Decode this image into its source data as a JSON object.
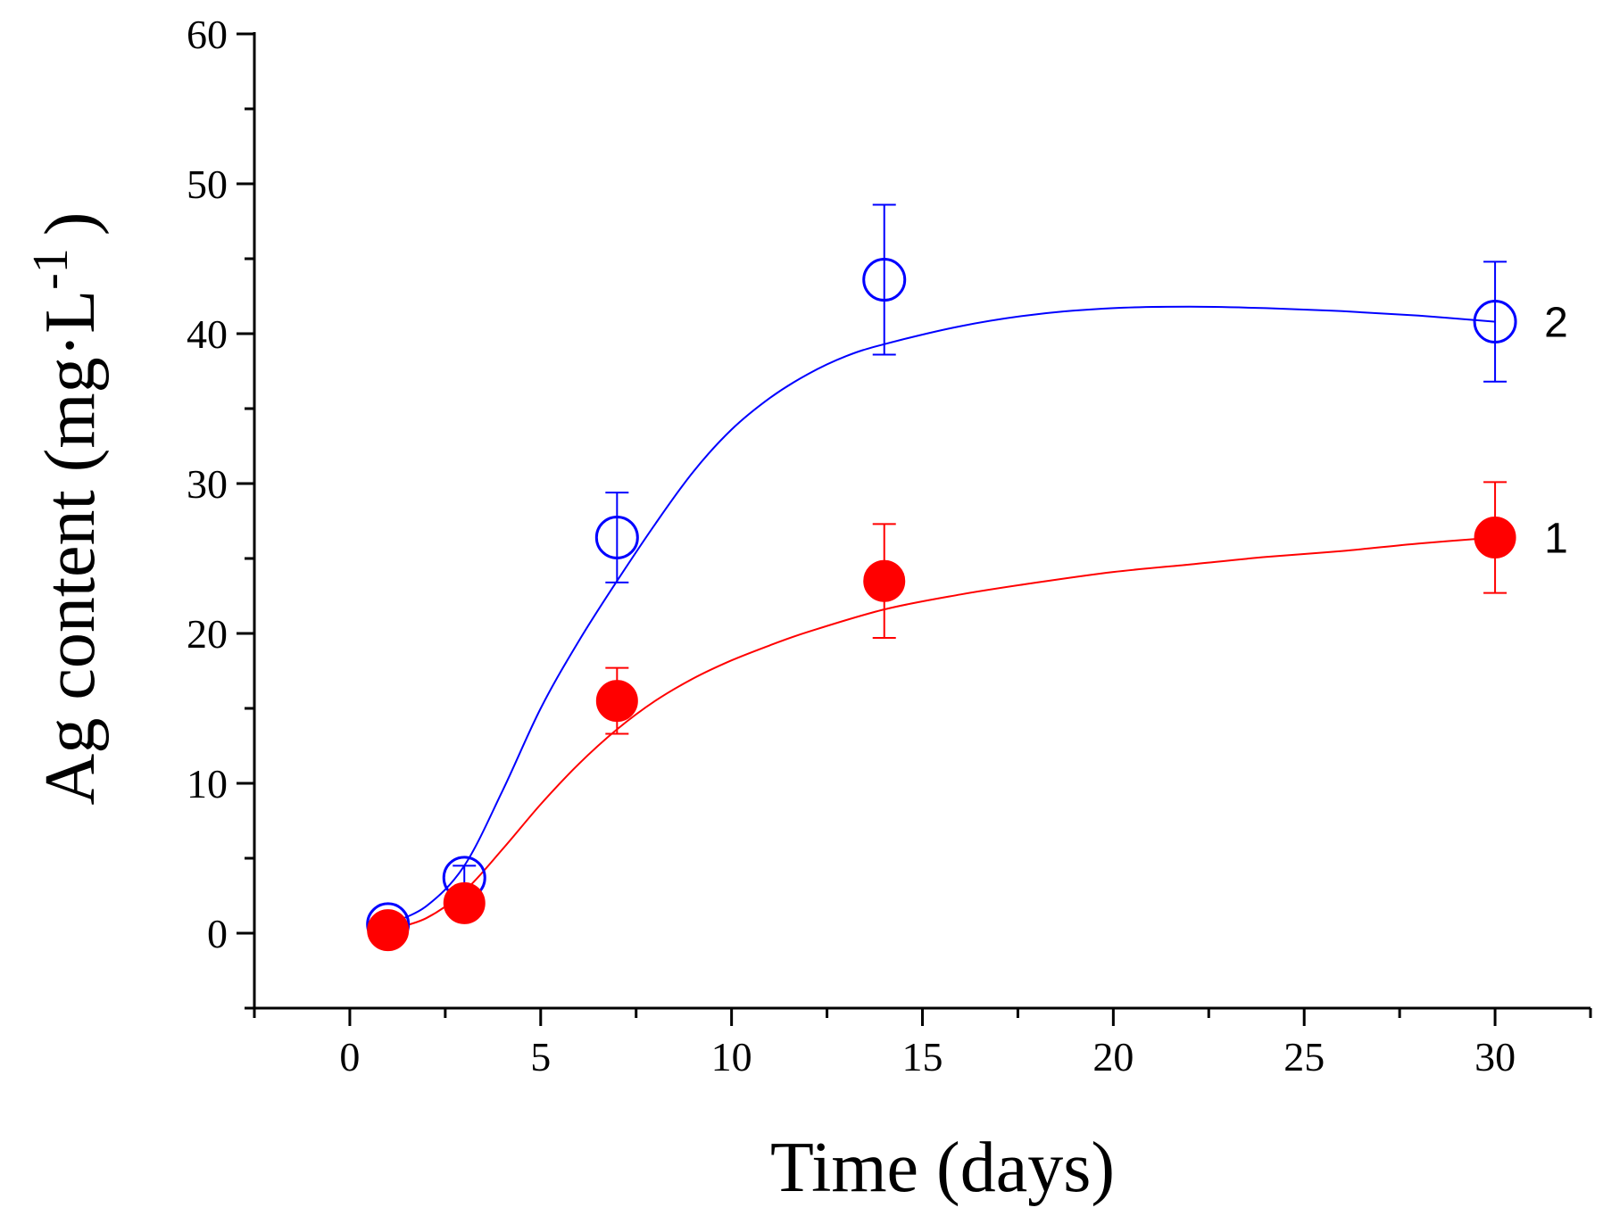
{
  "chart_data": {
    "type": "scatter",
    "xlabel": "Time (days)",
    "ylabel": "Ag content  (mg·L",
    "ylabel_superscript": "-1",
    "ylabel_close": ")",
    "xlim": [
      -2.5,
      32.5
    ],
    "ylim": [
      -5,
      60
    ],
    "xticks": [
      0,
      5,
      10,
      15,
      20,
      25,
      30
    ],
    "yticks": [
      0,
      10,
      20,
      30,
      40,
      50,
      60
    ],
    "grid": false,
    "series": [
      {
        "name": "1",
        "color": "#ff0000",
        "marker": "filled-circle",
        "x": [
          1,
          3,
          7,
          14,
          30
        ],
        "y": [
          0.2,
          2.0,
          15.5,
          23.5,
          26.4
        ],
        "error": [
          0.3,
          1.0,
          2.2,
          3.8,
          3.7
        ],
        "fit_curve": [
          [
            1,
            0.2
          ],
          [
            2,
            1.0
          ],
          [
            3,
            2.8
          ],
          [
            4,
            5.6
          ],
          [
            5,
            8.6
          ],
          [
            6,
            11.3
          ],
          [
            7,
            13.6
          ],
          [
            8,
            15.5
          ],
          [
            9,
            17.0
          ],
          [
            10,
            18.2
          ],
          [
            11,
            19.2
          ],
          [
            12,
            20.1
          ],
          [
            14,
            21.6
          ],
          [
            16,
            22.6
          ],
          [
            18,
            23.4
          ],
          [
            20,
            24.1
          ],
          [
            22,
            24.6
          ],
          [
            24,
            25.1
          ],
          [
            26,
            25.5
          ],
          [
            28,
            26.0
          ],
          [
            30,
            26.4
          ]
        ]
      },
      {
        "name": "2",
        "color": "#0000ff",
        "marker": "open-circle",
        "x": [
          1,
          3,
          7,
          14,
          30
        ],
        "y": [
          0.6,
          3.7,
          26.4,
          43.6,
          40.8
        ],
        "error": [
          0.4,
          0.8,
          3.0,
          5.0,
          4.0
        ],
        "fit_curve": [
          [
            1,
            0.6
          ],
          [
            2,
            1.8
          ],
          [
            3,
            4.5
          ],
          [
            4,
            9.5
          ],
          [
            5,
            15.0
          ],
          [
            6,
            19.5
          ],
          [
            7,
            23.5
          ],
          [
            8,
            27.3
          ],
          [
            9,
            30.8
          ],
          [
            10,
            33.6
          ],
          [
            11,
            35.7
          ],
          [
            12,
            37.3
          ],
          [
            13,
            38.5
          ],
          [
            14,
            39.3
          ],
          [
            16,
            40.5
          ],
          [
            18,
            41.3
          ],
          [
            20,
            41.7
          ],
          [
            22,
            41.8
          ],
          [
            24,
            41.7
          ],
          [
            26,
            41.5
          ],
          [
            28,
            41.2
          ],
          [
            30,
            40.8
          ]
        ]
      }
    ]
  }
}
